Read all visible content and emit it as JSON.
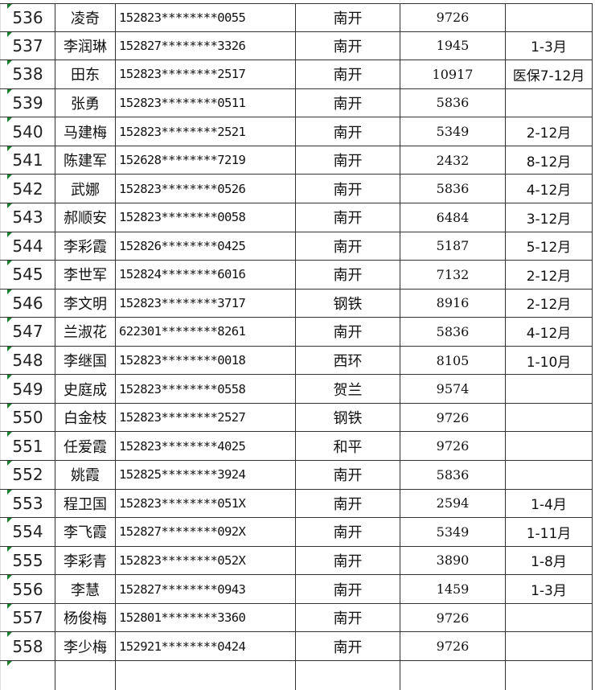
{
  "rows": [
    {
      "no": "536",
      "name": "凌奇",
      "id": "152823********0055",
      "area": "南开",
      "amount": "9726",
      "note": ""
    },
    {
      "no": "537",
      "name": "李润琳",
      "id": "152827********3326",
      "area": "南开",
      "amount": "1945",
      "note": "1-3月"
    },
    {
      "no": "538",
      "name": "田东",
      "id": "152823********2517",
      "area": "南开",
      "amount": "10917",
      "note": "医保7-12月"
    },
    {
      "no": "539",
      "name": "张勇",
      "id": "152823********0511",
      "area": "南开",
      "amount": "5836",
      "note": ""
    },
    {
      "no": "540",
      "name": "马建梅",
      "id": "152823********2521",
      "area": "南开",
      "amount": "5349",
      "note": "2-12月"
    },
    {
      "no": "541",
      "name": "陈建军",
      "id": "152628********7219",
      "area": "南开",
      "amount": "2432",
      "note": "8-12月"
    },
    {
      "no": "542",
      "name": "武娜",
      "id": "152823********0526",
      "area": "南开",
      "amount": "5836",
      "note": "4-12月"
    },
    {
      "no": "543",
      "name": "郝顺安",
      "id": "152823********0058",
      "area": "南开",
      "amount": "6484",
      "note": "3-12月"
    },
    {
      "no": "544",
      "name": "李彩霞",
      "id": "152826********0425",
      "area": "南开",
      "amount": "5187",
      "note": "5-12月"
    },
    {
      "no": "545",
      "name": "李世军",
      "id": "152824********6016",
      "area": "南开",
      "amount": "7132",
      "note": "2-12月"
    },
    {
      "no": "546",
      "name": "李文明",
      "id": "152823********3717",
      "area": "钢铁",
      "amount": "8916",
      "note": "2-12月"
    },
    {
      "no": "547",
      "name": "兰淑花",
      "id": "622301********8261",
      "area": "南开",
      "amount": "5836",
      "note": "4-12月"
    },
    {
      "no": "548",
      "name": "李继国",
      "id": "152823********0018",
      "area": "西环",
      "amount": "8105",
      "note": "1-10月"
    },
    {
      "no": "549",
      "name": "史庭成",
      "id": "152823********0558",
      "area": "贺兰",
      "amount": "9574",
      "note": ""
    },
    {
      "no": "550",
      "name": "白金枝",
      "id": "152823********2527",
      "area": "钢铁",
      "amount": "9726",
      "note": ""
    },
    {
      "no": "551",
      "name": "任爱霞",
      "id": "152823********4025",
      "area": "和平",
      "amount": "9726",
      "note": ""
    },
    {
      "no": "552",
      "name": "姚霞",
      "id": "152825********3924",
      "area": "南开",
      "amount": "5836",
      "note": ""
    },
    {
      "no": "553",
      "name": "程卫国",
      "id": "152823********051X",
      "area": "南开",
      "amount": "2594",
      "note": "1-4月"
    },
    {
      "no": "554",
      "name": "李飞霞",
      "id": "152827********092X",
      "area": "南开",
      "amount": "5349",
      "note": "1-11月"
    },
    {
      "no": "555",
      "name": "李彩青",
      "id": "152823********052X",
      "area": "南开",
      "amount": "3890",
      "note": "1-8月"
    },
    {
      "no": "556",
      "name": "李慧",
      "id": "152827********0943",
      "area": "南开",
      "amount": "1459",
      "note": "1-3月"
    },
    {
      "no": "557",
      "name": "杨俊梅",
      "id": "152801********3360",
      "area": "南开",
      "amount": "9726",
      "note": ""
    },
    {
      "no": "558",
      "name": "李少梅",
      "id": "152921********0424",
      "area": "南开",
      "amount": "9726",
      "note": ""
    }
  ],
  "colors": {
    "border": "#333333",
    "cell_marker": "#1a7f2a",
    "text": "#111111"
  }
}
